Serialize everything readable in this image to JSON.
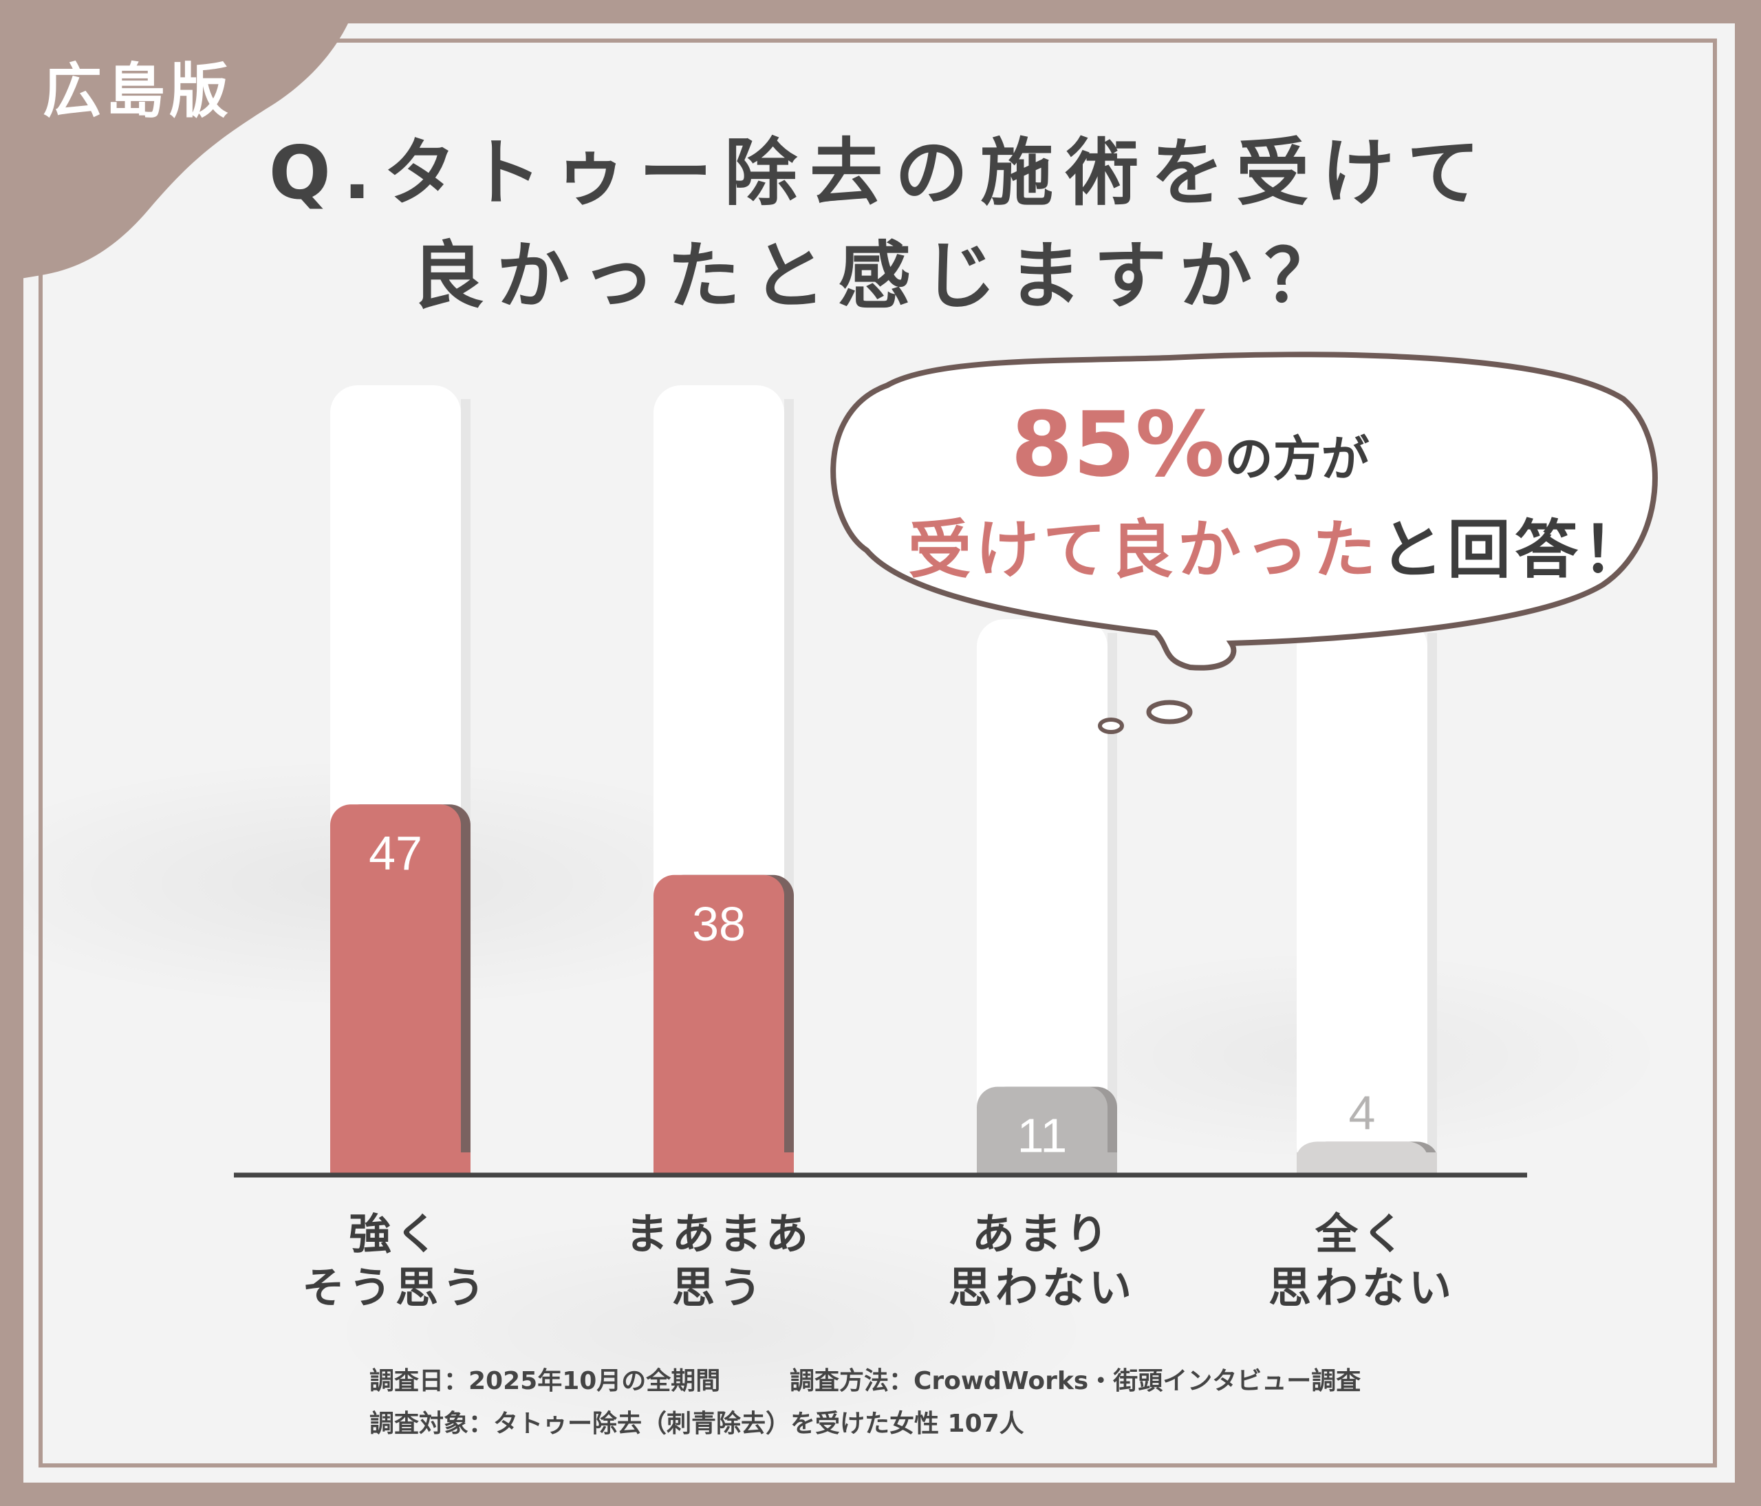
{
  "edition_label": "広島版",
  "title": {
    "line1": "Q.タトゥー除去の施術を受けて",
    "line2": "良かったと感じますか？"
  },
  "callout": {
    "percent": "85%",
    "line1_rest": "の方が",
    "line2_highlight": "受けて良かった",
    "line2_rest": "と回答！"
  },
  "footnotes": {
    "date": "調査日：2025年10月の全期間",
    "method": "調査方法：CrowdWorks・街頭インタビュー調査",
    "subjects": "調査対象：タトゥー除去（刺青除去）を受けた女性 107人"
  },
  "colors": {
    "positive_bar": "#d07673",
    "negative_bar": "#b9b7b6",
    "frame": "#b09a92"
  },
  "chart_data": {
    "type": "bar",
    "categories": [
      "強く そう思う",
      "まあまあ 思う",
      "あまり 思わない",
      "全く 思わない"
    ],
    "category_lines": [
      [
        "強く",
        "そう思う"
      ],
      [
        "まあまあ",
        "思う"
      ],
      [
        "あまり",
        "思わない"
      ],
      [
        "全く",
        "思わない"
      ]
    ],
    "values": [
      47,
      38,
      11,
      4
    ],
    "value_labels": [
      "47",
      "38",
      "11",
      "4"
    ],
    "ylim": [
      0,
      107
    ],
    "grid": false,
    "legend": "none"
  }
}
